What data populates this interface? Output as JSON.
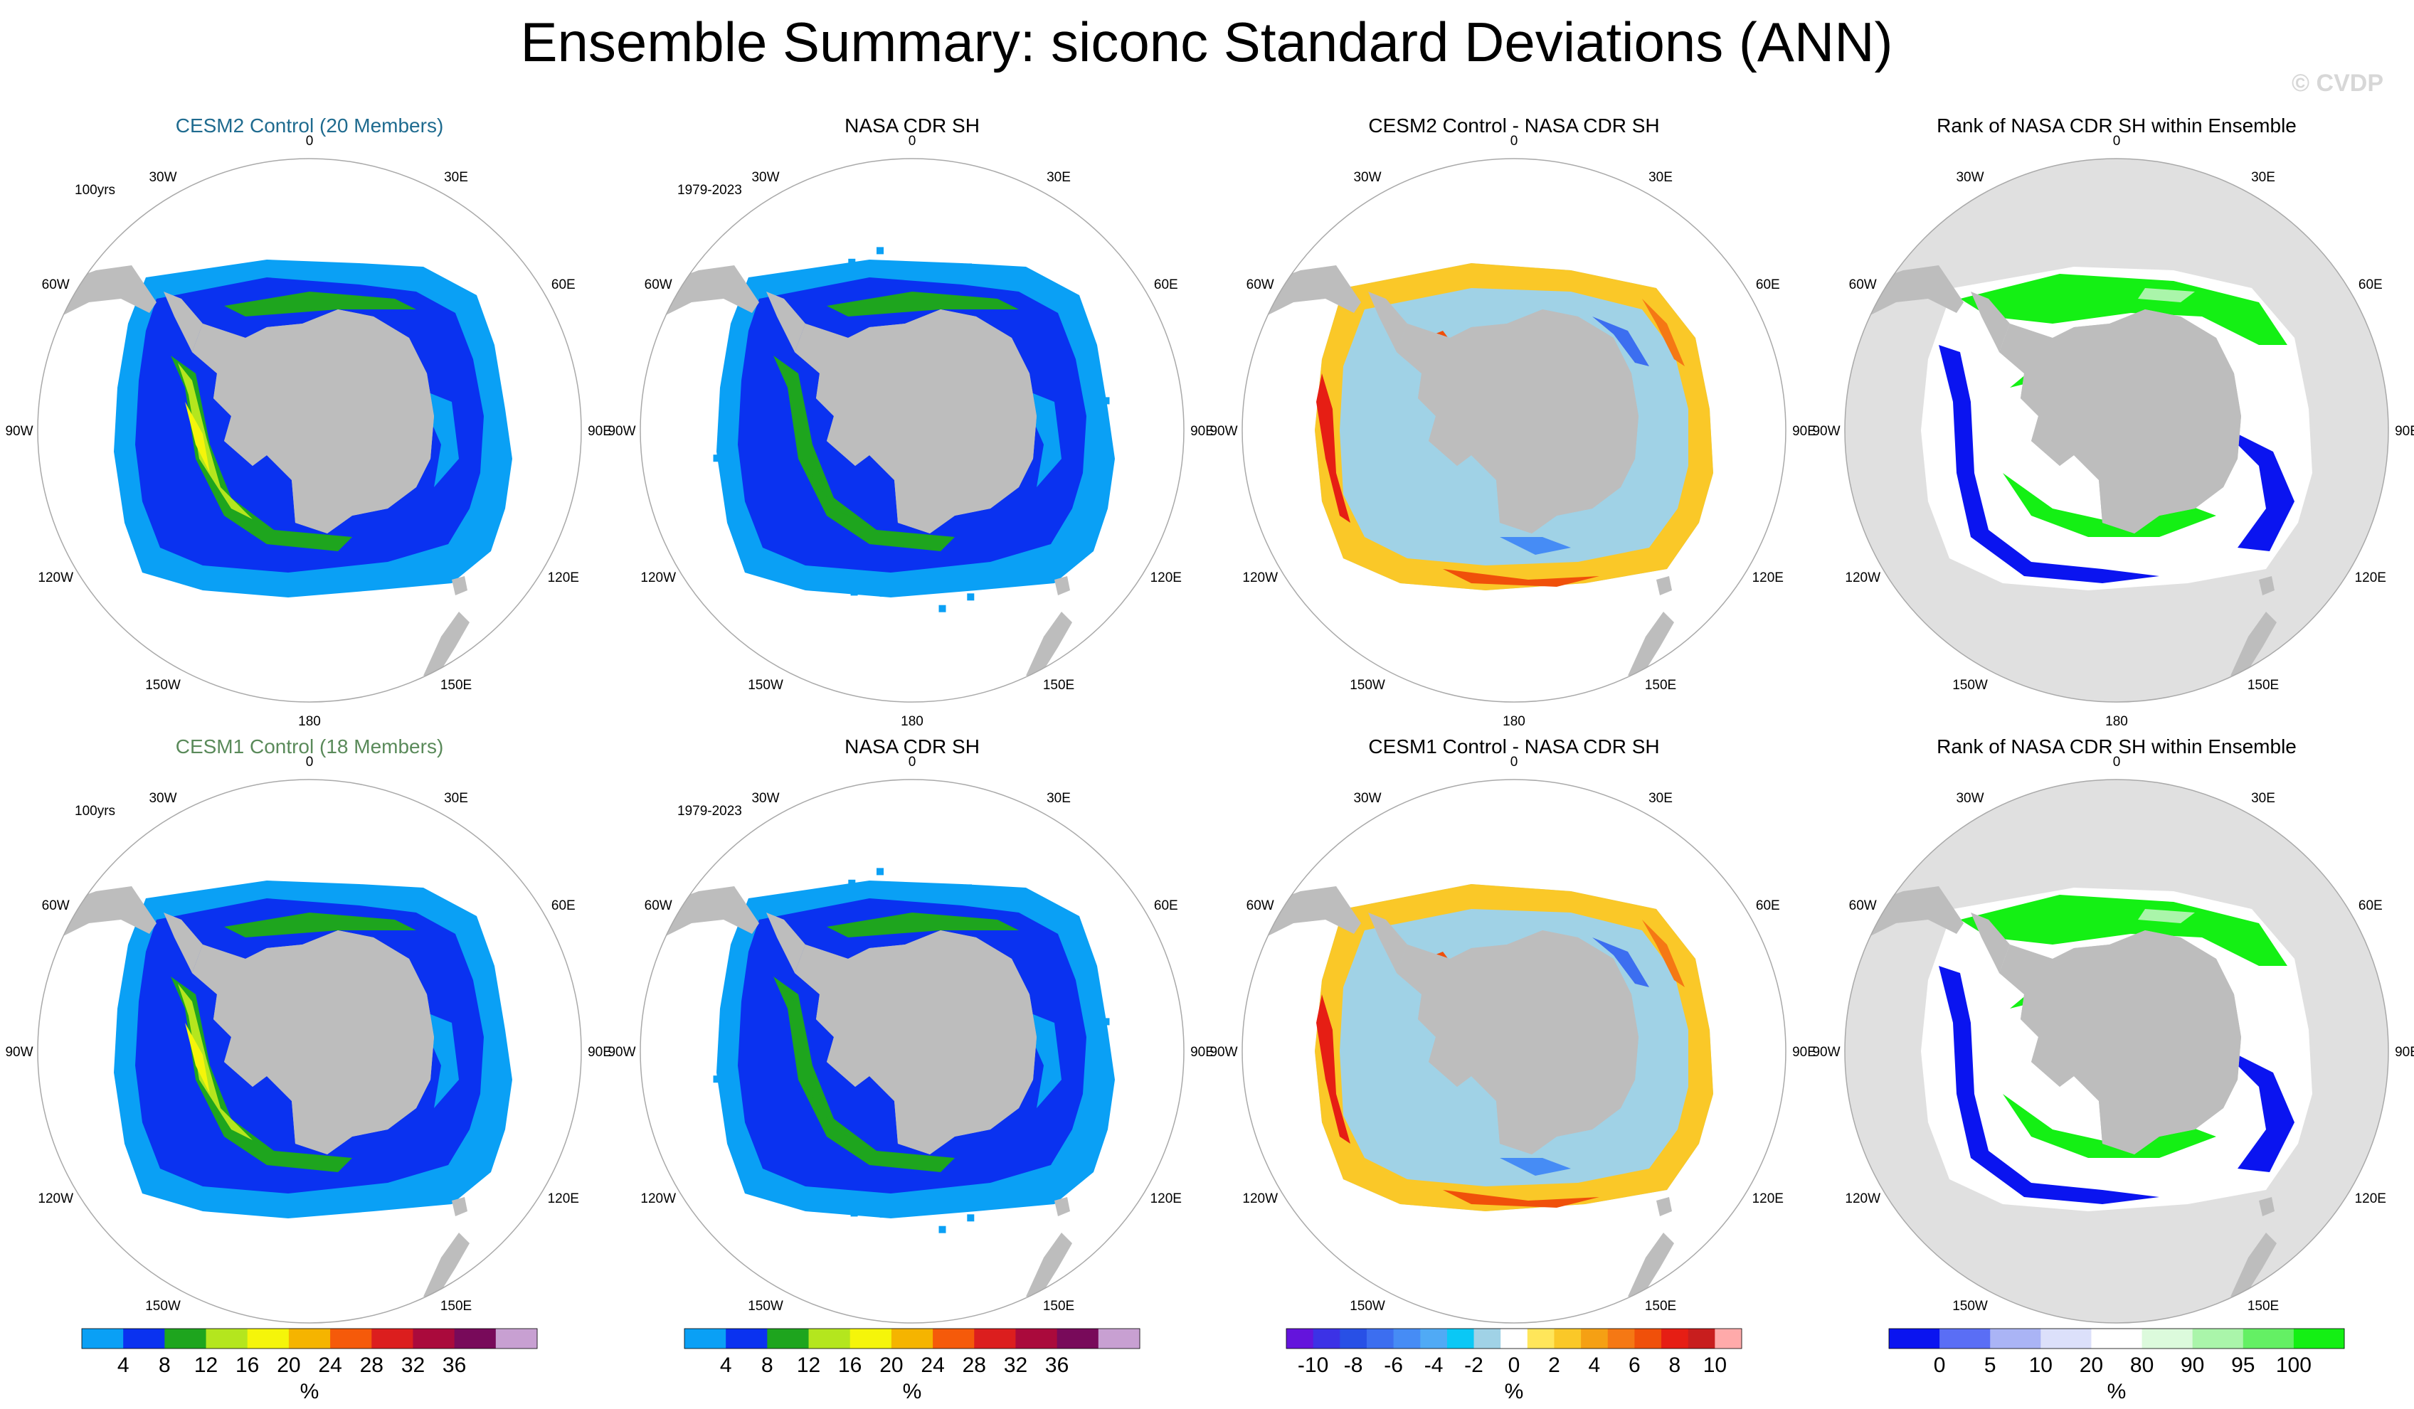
{
  "title": "Ensemble Summary: siconc Standard Deviations (ANN)",
  "watermark": "© CVDP",
  "colors": {
    "ocean_bg": "#ffffff",
    "land": "#bdbdbd",
    "rank_disk": "#e0e0e0",
    "cesm2_title": "#1f6b8f",
    "cesm1_title": "#5a8a5a"
  },
  "lon_labels": [
    "0",
    "30E",
    "60E",
    "90E",
    "120E",
    "150E",
    "180",
    "150W",
    "120W",
    "90W",
    "60W",
    "30W"
  ],
  "chart_data": [
    {
      "type": "heatmap",
      "row": 0,
      "col": 0,
      "kind": "sd",
      "variant": "cesm2",
      "title": "CESM2 Control (20 Members)",
      "title_color": "#1f6b8f",
      "period": "100yrs",
      "data_description": "polar stereographic map of sea ice concentration standard deviation",
      "units": "%"
    },
    {
      "type": "heatmap",
      "row": 0,
      "col": 1,
      "kind": "sd",
      "variant": "obs",
      "title": "NASA CDR SH",
      "period": "1979-2023",
      "units": "%"
    },
    {
      "type": "heatmap",
      "row": 0,
      "col": 2,
      "kind": "diff",
      "variant": "cesm2",
      "title": "CESM2 Control - NASA CDR SH",
      "units": "%"
    },
    {
      "type": "heatmap",
      "row": 0,
      "col": 3,
      "kind": "rank",
      "variant": "cesm2",
      "title": "Rank of NASA CDR SH within Ensemble",
      "units": "%"
    },
    {
      "type": "heatmap",
      "row": 1,
      "col": 0,
      "kind": "sd",
      "variant": "cesm1",
      "title": "CESM1 Control (18 Members)",
      "title_color": "#5a8a5a",
      "period": "100yrs",
      "units": "%"
    },
    {
      "type": "heatmap",
      "row": 1,
      "col": 1,
      "kind": "sd",
      "variant": "obs",
      "title": "NASA CDR SH",
      "period": "1979-2023",
      "units": "%"
    },
    {
      "type": "heatmap",
      "row": 1,
      "col": 2,
      "kind": "diff",
      "variant": "cesm1",
      "title": "CESM1 Control - NASA CDR SH",
      "units": "%"
    },
    {
      "type": "heatmap",
      "row": 1,
      "col": 3,
      "kind": "rank",
      "variant": "cesm1",
      "title": "Rank of NASA CDR SH within Ensemble",
      "units": "%"
    }
  ],
  "colorbars": [
    {
      "col": 0,
      "unit": "%",
      "colors": [
        "#0aa0f5",
        "#0a32f0",
        "#1ea51e",
        "#b4e61e",
        "#f5f50a",
        "#f5b400",
        "#f55a0a",
        "#dc1e1e",
        "#aa0a3c",
        "#780a5a",
        "#c8a0d2"
      ],
      "ticks": [
        "4",
        "8",
        "12",
        "16",
        "20",
        "24",
        "28",
        "32",
        "36"
      ]
    },
    {
      "col": 1,
      "unit": "%",
      "colors": [
        "#0aa0f5",
        "#0a32f0",
        "#1ea51e",
        "#b4e61e",
        "#f5f50a",
        "#f5b400",
        "#f55a0a",
        "#dc1e1e",
        "#aa0a3c",
        "#780a5a",
        "#c8a0d2"
      ],
      "ticks": [
        "4",
        "8",
        "12",
        "16",
        "20",
        "24",
        "28",
        "32",
        "36"
      ]
    },
    {
      "col": 2,
      "unit": "%",
      "colors": [
        "#6414dc",
        "#3c32e6",
        "#2850e6",
        "#3c6ef0",
        "#468cf5",
        "#50aaf5",
        "#0ac8f5",
        "#a0d2e6",
        "#ffffff",
        "#ffe65a",
        "#fac828",
        "#f5a014",
        "#f57814",
        "#f0500a",
        "#e61e14",
        "#c81e1e",
        "#ffaaaa"
      ],
      "ticks": [
        "-10",
        "-8",
        "-6",
        "-4",
        "-2",
        "0",
        "2",
        "4",
        "6",
        "8",
        "10"
      ]
    },
    {
      "col": 3,
      "unit": "%",
      "colors": [
        "#0a14f0",
        "#5a6ef5",
        "#aab4f5",
        "#dce0fa",
        "#ffffff",
        "#dcfadc",
        "#aaf5aa",
        "#64f064",
        "#14f014"
      ],
      "ticks": [
        "0",
        "5",
        "10",
        "20",
        "80",
        "90",
        "95",
        "100"
      ]
    }
  ]
}
